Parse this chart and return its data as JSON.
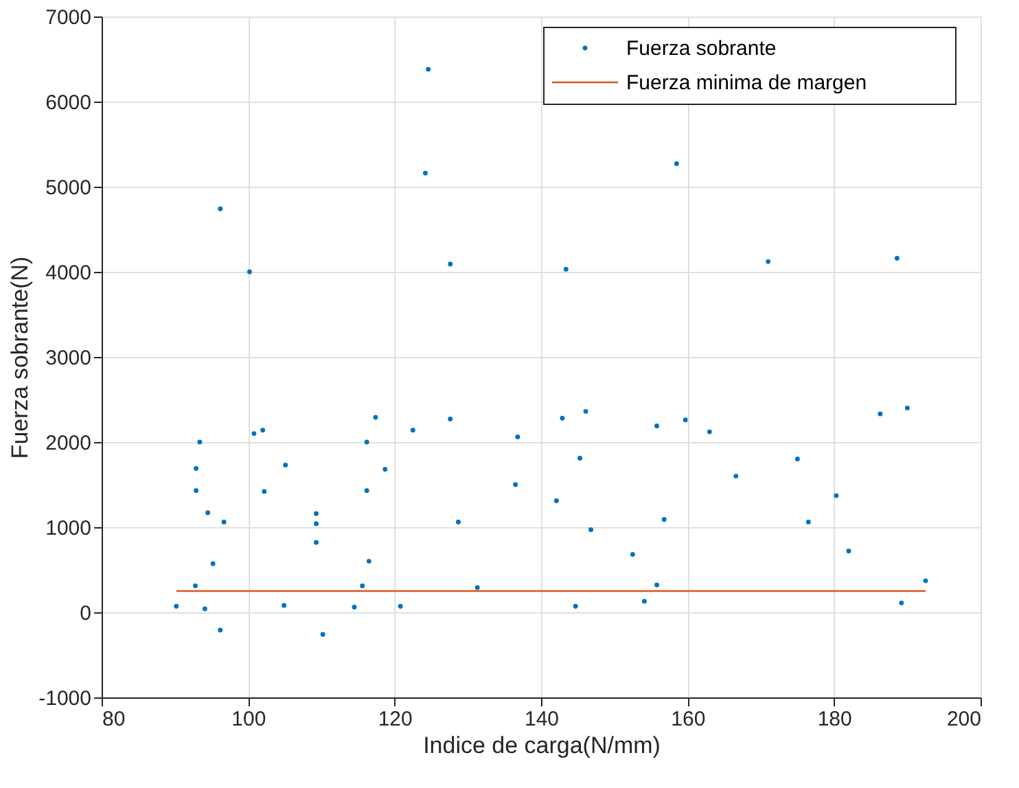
{
  "chart_data": {
    "type": "scatter",
    "xlabel": "Indice de carga(N/mm)",
    "ylabel": "Fuerza sobrante(N)",
    "xlim": [
      80,
      200
    ],
    "xticks": [
      80,
      100,
      120,
      140,
      160,
      180,
      200
    ],
    "ylim": [
      -1000,
      7000
    ],
    "yticks": [
      -1000,
      0,
      1000,
      2000,
      3000,
      4000,
      5000,
      6000,
      7000
    ],
    "grid": true,
    "legend": "top right",
    "series": [
      {
        "name": "Fuerza sobrante",
        "color": "#0072bd",
        "marker": "circle",
        "x": [
          90.2,
          92.8,
          92.9,
          92.9,
          93.4,
          94.1,
          94.5,
          95.2,
          96.2,
          96.7,
          96.2,
          100.2,
          100.8,
          102.0,
          102.2,
          104.9,
          105.1,
          109.3,
          109.3,
          109.3,
          110.2,
          114.5,
          115.6,
          116.2,
          116.2,
          116.5,
          117.4,
          118.7,
          120.8,
          122.5,
          124.2,
          124.6,
          127.6,
          127.6,
          128.7,
          131.3,
          136.5,
          136.8,
          142.1,
          142.9,
          143.4,
          144.7,
          145.3,
          146.1,
          146.8,
          152.5,
          154.1,
          155.8,
          155.8,
          156.8,
          158.5,
          159.7,
          163.0,
          166.6,
          171.0,
          175.0,
          176.5,
          180.3,
          182.0,
          186.3,
          188.6,
          189.2,
          190.0,
          192.5
        ],
        "values": [
          70,
          310,
          1430,
          1690,
          2000,
          40,
          1170,
          570,
          -210,
          1060,
          4740,
          4000,
          2100,
          2140,
          1420,
          80,
          1730,
          1160,
          1040,
          820,
          -260,
          60,
          310,
          1430,
          2000,
          600,
          2290,
          1680,
          70,
          2140,
          5160,
          6380,
          4090,
          2270,
          1060,
          290,
          1500,
          2060,
          1310,
          2280,
          4030,
          70,
          1810,
          2360,
          970,
          680,
          130,
          2190,
          320,
          1090,
          5270,
          2260,
          2120,
          1600,
          4120,
          1800,
          1060,
          1370,
          720,
          2330,
          4160,
          110,
          2400,
          370
        ]
      },
      {
        "name": "Fuerza minima de margen",
        "color": "#d95319",
        "type": "line",
        "line_style": "solid",
        "marker": "none",
        "x": [
          90.2,
          192.5
        ],
        "values": [
          250,
          250
        ]
      }
    ]
  }
}
